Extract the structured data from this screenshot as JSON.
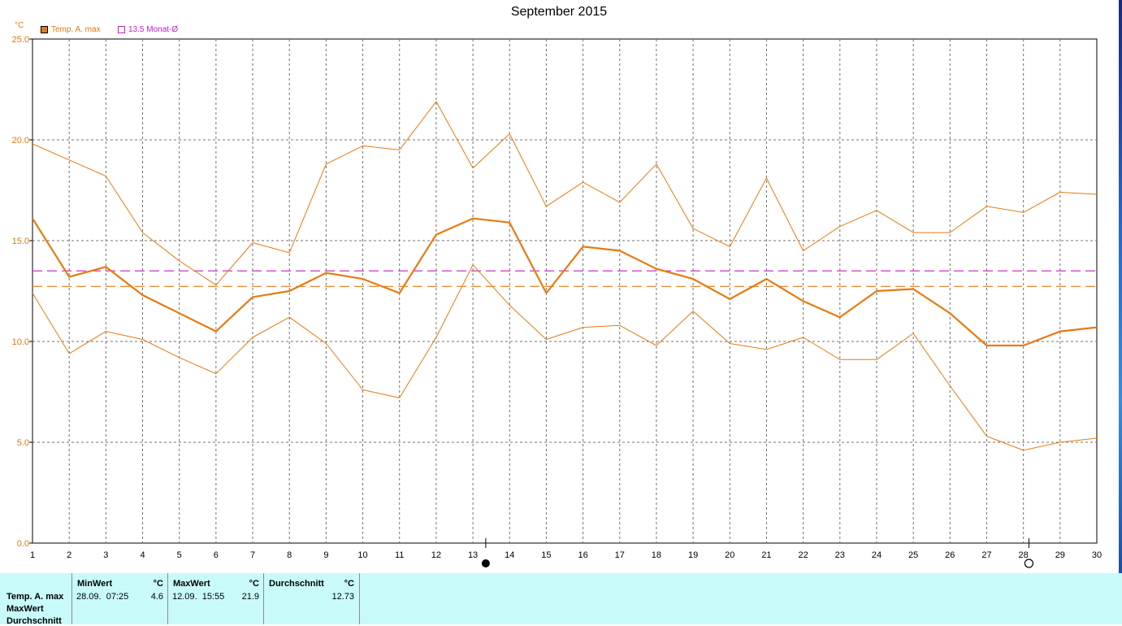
{
  "window": {
    "title": "September 2015"
  },
  "legend": {
    "unit": "°C",
    "items": [
      {
        "label": "Temp. A. max",
        "color": "#e87a10",
        "filled": true
      },
      {
        "label": "13.5 Monat-Ø",
        "color": "#c020c0",
        "filled": false
      }
    ]
  },
  "colors": {
    "series": "#e87a10",
    "month_avg": "#c020c0",
    "table_bg": "#c8fafa"
  },
  "chart_data": {
    "type": "line",
    "title": "September 2015",
    "ylabel": "°C",
    "xlabel": "",
    "x": [
      1,
      2,
      3,
      4,
      5,
      6,
      7,
      8,
      9,
      10,
      11,
      12,
      13,
      14,
      15,
      16,
      17,
      18,
      19,
      20,
      21,
      22,
      23,
      24,
      25,
      26,
      27,
      28,
      29,
      30
    ],
    "x_ticks": [
      "1",
      "2",
      "3",
      "4",
      "5",
      "6",
      "7",
      "8",
      "9",
      "10",
      "11",
      "12",
      "13",
      "14",
      "15",
      "16",
      "17",
      "18",
      "19",
      "20",
      "21",
      "22",
      "23",
      "24",
      "25",
      "26",
      "27",
      "28",
      "29",
      "30"
    ],
    "ylim": [
      0,
      25
    ],
    "y_ticks": [
      "0.0",
      "5.0",
      "10.0",
      "15.0",
      "20.0",
      "25.0"
    ],
    "grid": true,
    "legend_position": "top-left",
    "series": [
      {
        "name": "Temp. A. max",
        "role": "main",
        "values": [
          16.1,
          13.2,
          13.7,
          12.3,
          11.4,
          10.5,
          12.2,
          12.5,
          13.4,
          13.1,
          12.4,
          15.3,
          16.1,
          15.9,
          12.4,
          14.7,
          14.5,
          13.6,
          13.1,
          12.1,
          13.1,
          12.0,
          11.2,
          12.5,
          12.6,
          11.4,
          9.8,
          9.8,
          10.5,
          10.7
        ]
      },
      {
        "role": "max",
        "values": [
          19.8,
          19.0,
          18.2,
          15.4,
          14.0,
          12.8,
          14.9,
          14.4,
          18.8,
          19.7,
          19.5,
          21.9,
          18.6,
          20.3,
          16.7,
          17.9,
          16.9,
          18.8,
          15.6,
          14.7,
          18.1,
          14.5,
          15.7,
          16.5,
          15.4,
          15.4,
          16.7,
          16.4,
          17.4,
          17.3
        ]
      },
      {
        "role": "min",
        "values": [
          12.4,
          9.4,
          10.5,
          10.1,
          9.2,
          8.4,
          10.2,
          11.2,
          9.9,
          7.6,
          7.2,
          10.2,
          13.8,
          11.8,
          10.1,
          10.7,
          10.8,
          9.8,
          11.5,
          9.9,
          9.6,
          10.2,
          9.1,
          9.1,
          10.4,
          7.8,
          5.3,
          4.6,
          5.0,
          5.2
        ]
      }
    ],
    "reference_lines": [
      {
        "value": 13.5,
        "color": "#c020c0",
        "style": "dashed"
      },
      {
        "value": 12.73,
        "color": "#e87a10",
        "style": "dashed"
      }
    ],
    "markers": [
      {
        "x": 13.35,
        "symbol": "full-moon-icon"
      },
      {
        "x": 28.15,
        "symbol": "new-moon-icon"
      }
    ]
  },
  "summary": {
    "row_labels": [
      "Temp. A. max",
      "MaxWert",
      "Durchschnitt"
    ],
    "min": {
      "header": "MinWert",
      "unit": "°C",
      "when": "28.09.  07:25",
      "value": "4.6"
    },
    "max": {
      "header": "MaxWert",
      "unit": "°C",
      "when": "12.09.  15:55",
      "value": "21.9"
    },
    "avg": {
      "header": "Durchschnitt",
      "unit": "°C",
      "value": "12.73"
    }
  }
}
